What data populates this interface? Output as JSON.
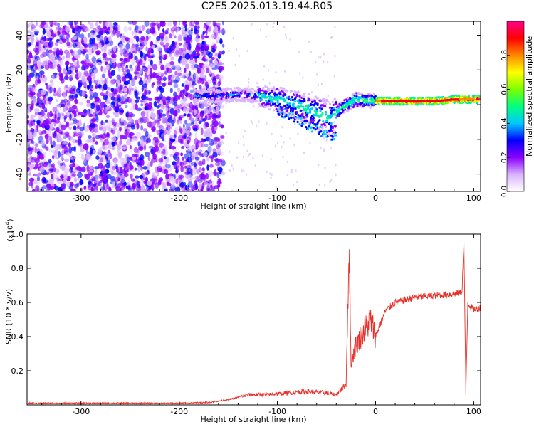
{
  "title": "C2E5.2025.013.19.44.R05",
  "chart_data": [
    {
      "type": "heatmap",
      "xlabel": "Height of straight line (km)",
      "ylabel": "Frequency (Hz)",
      "xlim": [
        -355,
        107
      ],
      "ylim": [
        -50,
        48
      ],
      "xticks": [
        -300,
        -200,
        -100,
        0,
        100
      ],
      "yticks": [
        -40,
        -20,
        0,
        20,
        40
      ],
      "colorbar": {
        "label": "Normalized spectral amplitude",
        "range": [
          0.0,
          1.0
        ],
        "ticks": [
          "0.0",
          "0.2",
          "0.4",
          "0.6",
          "0.8"
        ],
        "colors": [
          "#ffffff",
          "#d9b3ff",
          "#8a00ff",
          "#0000ff",
          "#00c8ff",
          "#00ff80",
          "#7cff00",
          "#ffff00",
          "#ff8800",
          "#ff0000",
          "#ff0088"
        ]
      },
      "ridge": {
        "description": "frequency centroid of dominant signal vs height",
        "x": [
          -180,
          -160,
          -140,
          -120,
          -100,
          -80,
          -60,
          -45,
          -35,
          -20,
          0,
          20,
          40,
          60,
          80,
          100
        ],
        "y": [
          5,
          5,
          6,
          5,
          3,
          0,
          -5,
          -8,
          -2,
          3,
          2,
          2,
          2,
          2,
          3,
          3
        ]
      }
    },
    {
      "type": "line",
      "xlabel": "Height of straight line (km)",
      "ylabel": "SNR (10 * v/v)",
      "multiplier": "(x10",
      "multiplier_exp": "4",
      "xlim": [
        -355,
        107
      ],
      "ylim": [
        0,
        1.0
      ],
      "xticks": [
        -300,
        -200,
        -100,
        0,
        100
      ],
      "yticks": [
        "0.2",
        "0.4",
        "0.6",
        "0.8",
        "1.0"
      ],
      "series": [
        {
          "color": "#e8302a",
          "x": [
            -355,
            -300,
            -250,
            -200,
            -170,
            -150,
            -130,
            -110,
            -90,
            -70,
            -50,
            -40,
            -30,
            -27,
            -25,
            -20,
            -15,
            -10,
            -5,
            0,
            10,
            20,
            40,
            60,
            80,
            88,
            90,
            92,
            94,
            96,
            100,
            107
          ],
          "y": [
            0.01,
            0.01,
            0.01,
            0.01,
            0.015,
            0.03,
            0.06,
            0.06,
            0.07,
            0.08,
            0.07,
            0.06,
            0.12,
            0.92,
            0.25,
            0.35,
            0.4,
            0.45,
            0.5,
            0.4,
            0.55,
            0.6,
            0.63,
            0.64,
            0.65,
            0.66,
            0.95,
            0.07,
            0.6,
            0.58,
            0.56,
            0.57
          ]
        }
      ]
    }
  ]
}
